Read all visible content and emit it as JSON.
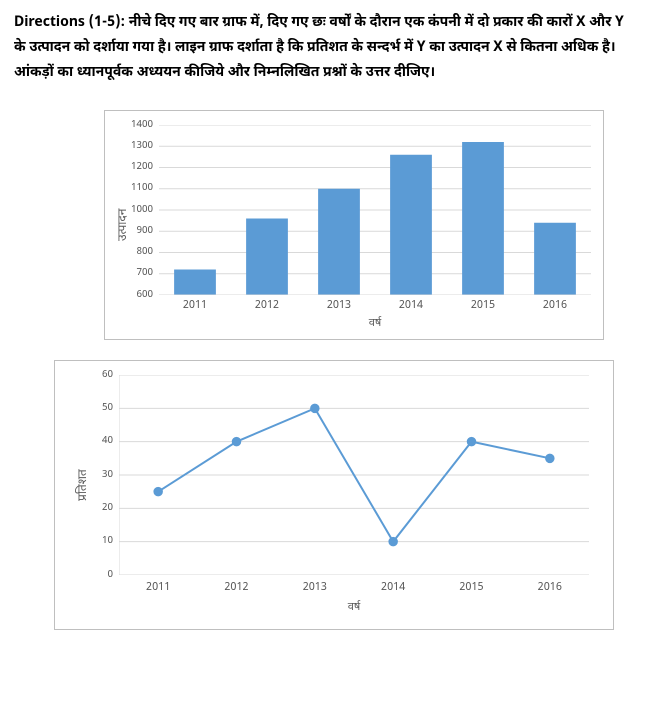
{
  "directions": "Directions (1-5): नीचे दिए गए बार ग्राफ में, दिए गए छः वर्षों के दौरान एक कंपनी में दो प्रकार की कारों X और Y के उत्पादन को दर्शाया गया है। लाइन ग्राफ दर्शाता है कि प्रतिशत के सन्दर्भ में Y का उत्पादन X से कितना अधिक है। आंकड़ों का ध्यानपूर्वक अध्ययन कीजिये और निम्नलिखित प्रश्नों के उत्तर दीजिए।",
  "bar_chart": {
    "type": "bar",
    "categories": [
      "2011",
      "2012",
      "2013",
      "2014",
      "2015",
      "2016"
    ],
    "values": [
      720,
      960,
      1100,
      1260,
      1320,
      940
    ],
    "bar_color": "#5b9bd5",
    "grid_color": "#d9d9d9",
    "axis_color": "#d9d9d9",
    "text_color": "#595959",
    "ymin": 600,
    "ymax": 1400,
    "ytick_step": 100,
    "ylabel": "उत्पादन",
    "xlabel": "वर्ष",
    "bar_width_ratio": 0.58,
    "label_fontsize": 11,
    "tick_fontsize": 10
  },
  "line_chart": {
    "type": "line",
    "categories": [
      "2011",
      "2012",
      "2013",
      "2014",
      "2015",
      "2016"
    ],
    "values": [
      25,
      40,
      50,
      10,
      40,
      35
    ],
    "line_color": "#5b9bd5",
    "marker_color": "#5b9bd5",
    "marker_fill": "#ffffff",
    "marker_size": 4,
    "grid_color": "#d9d9d9",
    "axis_color": "#d9d9d9",
    "text_color": "#595959",
    "ymin": 0,
    "ymax": 60,
    "ytick_step": 10,
    "ylabel": "प्रतिशत",
    "xlabel": "वर्ष",
    "line_width": 2,
    "label_fontsize": 11,
    "tick_fontsize": 10
  }
}
